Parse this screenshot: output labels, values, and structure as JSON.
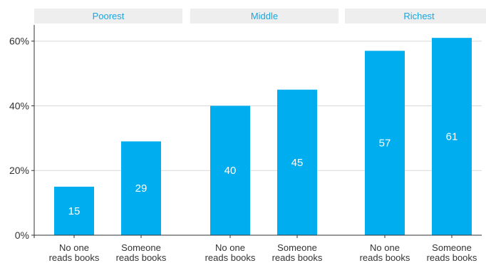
{
  "chart_data": {
    "type": "bar",
    "facets": [
      "Poorest",
      "Middle",
      "Richest"
    ],
    "categories": [
      "No one reads books",
      "Someone reads books"
    ],
    "category_lines": [
      [
        "No one",
        "reads books"
      ],
      [
        "Someone",
        "reads books"
      ]
    ],
    "panels": [
      {
        "name": "Poorest",
        "values": [
          15,
          29
        ]
      },
      {
        "name": "Middle",
        "values": [
          40,
          45
        ]
      },
      {
        "name": "Richest",
        "values": [
          57,
          61
        ]
      }
    ],
    "ylim": [
      0,
      65
    ],
    "yticks": [
      0,
      20,
      40,
      60
    ],
    "ytick_labels": [
      "0%",
      "20%",
      "40%",
      "60%"
    ],
    "grid": true,
    "bar_color": "#00aeef",
    "title_color": "#1aa6e0"
  }
}
